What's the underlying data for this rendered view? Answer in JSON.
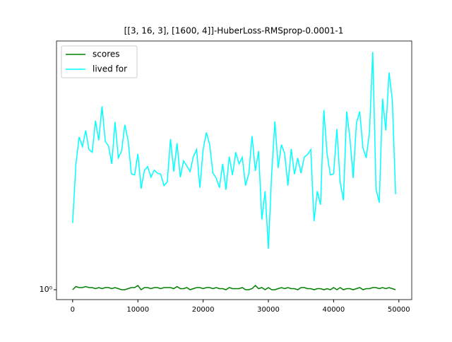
{
  "chart_data": {
    "type": "line",
    "title": "[[3, 16, 3], [1600, 4]]-HuberLoss-RMSprop-0.0001-1",
    "x": [
      0,
      500,
      1000,
      1500,
      2000,
      2500,
      3000,
      3500,
      4000,
      4500,
      5000,
      5500,
      6000,
      6500,
      7000,
      7500,
      8000,
      8500,
      9000,
      9500,
      10000,
      10500,
      11000,
      11500,
      12000,
      12500,
      13000,
      13500,
      14000,
      14500,
      15000,
      15500,
      16000,
      16500,
      17000,
      17500,
      18000,
      18500,
      19000,
      19500,
      20000,
      20500,
      21000,
      21500,
      22000,
      22500,
      23000,
      23500,
      24000,
      24500,
      25000,
      25500,
      26000,
      26500,
      27000,
      27500,
      28000,
      28500,
      29000,
      29500,
      30000,
      30500,
      31000,
      31500,
      32000,
      32500,
      33000,
      33500,
      34000,
      34500,
      35000,
      35500,
      36000,
      36500,
      37000,
      37500,
      38000,
      38500,
      39000,
      39500,
      40000,
      40500,
      41000,
      41500,
      42000,
      42500,
      43000,
      43500,
      44000,
      44500,
      45000,
      45500,
      46000,
      46500,
      47000,
      47500,
      48000,
      48500,
      49000,
      49500
    ],
    "series": [
      {
        "name": "scores",
        "color": "#008000",
        "values": [
          1.0,
          1.03,
          1.02,
          1.02,
          1.03,
          1.02,
          1.02,
          1.01,
          1.02,
          1.01,
          1.02,
          1.02,
          1.01,
          1.02,
          1.01,
          1.0,
          1.0,
          1.01,
          1.02,
          1.02,
          1.04,
          1.0,
          1.02,
          1.02,
          1.01,
          1.02,
          1.02,
          1.01,
          1.02,
          1.02,
          1.02,
          1.01,
          1.03,
          1.01,
          1.01,
          1.02,
          1.0,
          1.01,
          1.02,
          1.02,
          1.01,
          1.02,
          1.02,
          1.01,
          1.02,
          1.01,
          1.01,
          1.0,
          1.02,
          1.01,
          1.01,
          1.01,
          1.02,
          1.0,
          1.0,
          1.01,
          1.04,
          1.01,
          1.02,
          1.0,
          1.02,
          1.0,
          1.0,
          1.01,
          1.02,
          1.01,
          1.02,
          1.01,
          1.01,
          1.0,
          1.02,
          1.02,
          1.01,
          1.01,
          1.0,
          1.01,
          1.01,
          1.0,
          1.01,
          1.0,
          1.02,
          1.0,
          1.02,
          1.0,
          1.01,
          1.01,
          1.0,
          1.01,
          1.02,
          1.0,
          1.01,
          1.01,
          1.02,
          1.02,
          1.01,
          1.02,
          1.01,
          1.02,
          1.01,
          1.0
        ]
      },
      {
        "name": "lived for",
        "color": "#00ffff",
        "values": [
          1.85,
          3.19,
          4.09,
          3.74,
          4.34,
          3.64,
          3.55,
          4.75,
          3.96,
          5.42,
          3.93,
          3.76,
          3.19,
          4.69,
          3.37,
          3.59,
          4.57,
          3.96,
          2.91,
          2.88,
          3.5,
          2.54,
          3.01,
          3.11,
          2.82,
          3.01,
          2.93,
          2.9,
          2.61,
          2.7,
          4.01,
          2.97,
          3.86,
          2.82,
          3.28,
          3.13,
          2.97,
          3.41,
          3.64,
          2.56,
          3.64,
          4.26,
          3.81,
          2.93,
          2.8,
          2.56,
          3.19,
          2.51,
          3.41,
          2.88,
          3.55,
          3.19,
          3.39,
          2.61,
          2.91,
          4.12,
          2.99,
          3.59,
          1.91,
          2.48,
          1.46,
          2.9,
          4.72,
          3.07,
          3.81,
          3.5,
          2.61,
          3.66,
          2.9,
          3.37,
          2.93,
          3.39,
          3.48,
          3.64,
          1.88,
          2.48,
          2.19,
          5.24,
          3.5,
          2.88,
          2.91,
          4.4,
          2.7,
          2.28,
          5.17,
          4.04,
          2.8,
          4.66,
          5.17,
          3.69,
          3.37,
          4.28,
          8.95,
          2.53,
          2.23,
          5.82,
          4.34,
          7.41,
          5.74,
          2.41
        ]
      }
    ],
    "xlim": [
      -2475,
      51975
    ],
    "ylim": [
      0.913,
      9.9
    ],
    "log_y": true,
    "xticks": [
      0,
      10000,
      20000,
      30000,
      40000,
      50000
    ],
    "yticks": [
      {
        "value": 1,
        "label": "10⁰"
      }
    ],
    "legend": "upper left"
  }
}
